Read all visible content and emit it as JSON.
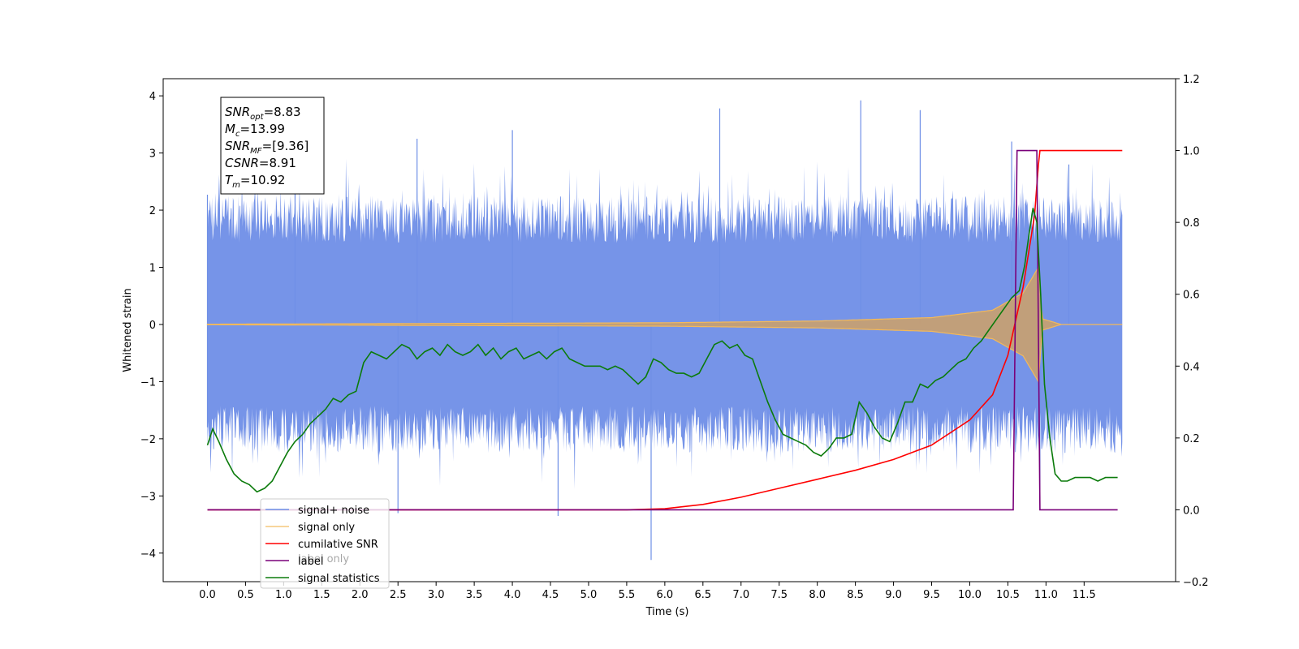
{
  "chart_data": {
    "type": "line",
    "xlabel": "Time (s)",
    "ylabel_left": "Whitened strain",
    "ylabel_right": "",
    "xlim": [
      -0.58,
      12.7
    ],
    "ylim_left": [
      -4.5,
      4.3
    ],
    "ylim_right": [
      -0.2,
      1.2
    ],
    "x_ticks": [
      0.0,
      0.5,
      1.0,
      1.5,
      2.0,
      2.5,
      3.0,
      3.5,
      4.0,
      4.5,
      5.0,
      5.5,
      6.0,
      6.5,
      7.0,
      7.5,
      8.0,
      8.5,
      9.0,
      9.5,
      10.0,
      10.5,
      11.0,
      11.5
    ],
    "x_tick_labels": [
      "0.0",
      "0.5",
      "1.0",
      "1.5",
      "2.0",
      "2.5",
      "3.0",
      "3.5",
      "4.0",
      "4.5",
      "5.0",
      "5.5",
      "6.0",
      "6.5",
      "7.0",
      "7.5",
      "8.0",
      "8.5",
      "9.0",
      "9.5",
      "10.0",
      "10.5",
      "11.0",
      "11.5"
    ],
    "y_left_ticks": [
      -4,
      -3,
      -2,
      -1,
      0,
      1,
      2,
      3,
      4
    ],
    "y_left_tick_labels": [
      "−4",
      "−3",
      "−2",
      "−1",
      "0",
      "1",
      "2",
      "3",
      "4"
    ],
    "y_right_ticks": [
      -0.2,
      0.0,
      0.2,
      0.4,
      0.6,
      0.8,
      1.0,
      1.2
    ],
    "y_right_tick_labels": [
      "−0.2",
      "0.0",
      "0.2",
      "0.4",
      "0.6",
      "0.8",
      "1.0",
      "1.2"
    ],
    "grid": false,
    "legend_position": "bottom-left",
    "info_box": [
      {
        "main": "SNR",
        "sub": "opt",
        "rest": "=8.83"
      },
      {
        "main": "M",
        "sub": "c",
        "rest": "=13.99"
      },
      {
        "main": "SNR",
        "sub": "MF",
        "rest": "=[9.36]"
      },
      {
        "main": "CSNR",
        "sub": "",
        "rest": "=8.91"
      },
      {
        "main": "T",
        "sub": "m",
        "rest": "=10.92"
      }
    ],
    "series": [
      {
        "name": "signal+ noise",
        "axis": "left",
        "color": "#6f8fe6",
        "style": "noise-band",
        "x_range": [
          0.0,
          12.0
        ],
        "typical_amplitude": 1.5,
        "peak_values": [
          {
            "x": 0.0,
            "y": 2.27
          },
          {
            "x": 0.0,
            "y": -1.8
          },
          {
            "x": 1.15,
            "y": 2.45
          },
          {
            "x": 2.5,
            "y": -3.3
          },
          {
            "x": 2.75,
            "y": 3.25
          },
          {
            "x": 4.0,
            "y": 3.4
          },
          {
            "x": 4.6,
            "y": -3.35
          },
          {
            "x": 5.82,
            "y": -4.12
          },
          {
            "x": 6.72,
            "y": 3.78
          },
          {
            "x": 8.57,
            "y": 3.92
          },
          {
            "x": 9.35,
            "y": 3.75
          },
          {
            "x": 10.55,
            "y": 3.2
          },
          {
            "x": 10.92,
            "y": -3.25
          },
          {
            "x": 11.3,
            "y": 2.8
          }
        ]
      },
      {
        "name": "signal only",
        "axis": "left",
        "color": "#f3b95a",
        "style": "chirp",
        "x_range": [
          0.0,
          12.0
        ],
        "merger_time": 10.92,
        "envelope_points": [
          [
            0.0,
            0.005
          ],
          [
            6.0,
            0.03
          ],
          [
            8.0,
            0.06
          ],
          [
            9.5,
            0.12
          ],
          [
            10.3,
            0.25
          ],
          [
            10.7,
            0.55
          ],
          [
            10.9,
            1.0
          ],
          [
            10.95,
            0.1
          ],
          [
            11.2,
            0.0
          ],
          [
            12.0,
            0.0
          ]
        ]
      },
      {
        "name": "cumilative SNR",
        "axis": "right",
        "color": "#ff0000",
        "x": [
          0.0,
          5.5,
          6.0,
          6.5,
          7.0,
          7.5,
          8.0,
          8.5,
          9.0,
          9.5,
          10.0,
          10.3,
          10.5,
          10.7,
          10.85,
          10.9,
          10.92,
          12.0
        ],
        "y": [
          0.0,
          0.0,
          0.003,
          0.015,
          0.035,
          0.06,
          0.085,
          0.11,
          0.14,
          0.18,
          0.25,
          0.32,
          0.43,
          0.62,
          0.82,
          0.96,
          1.0,
          1.0
        ]
      },
      {
        "name": "label",
        "axis": "right",
        "color": "#7a007a",
        "x": [
          0.0,
          10.57,
          10.62,
          10.88,
          10.92,
          11.94
        ],
        "y": [
          0.0,
          0.0,
          1.0,
          1.0,
          0.0,
          0.0
        ]
      },
      {
        "name": "label only",
        "axis": "right",
        "color": "#7a007a",
        "style": "hidden"
      },
      {
        "name": "signal statistics",
        "axis": "right",
        "color": "#0b7b0b",
        "x": [
          0.0,
          0.07,
          0.15,
          0.25,
          0.35,
          0.45,
          0.55,
          0.65,
          0.75,
          0.85,
          0.95,
          1.05,
          1.15,
          1.25,
          1.35,
          1.45,
          1.55,
          1.65,
          1.75,
          1.85,
          1.95,
          2.05,
          2.15,
          2.25,
          2.35,
          2.45,
          2.55,
          2.65,
          2.75,
          2.85,
          2.95,
          3.05,
          3.15,
          3.25,
          3.35,
          3.45,
          3.55,
          3.65,
          3.75,
          3.85,
          3.95,
          4.05,
          4.15,
          4.25,
          4.35,
          4.45,
          4.55,
          4.65,
          4.75,
          4.85,
          4.95,
          5.05,
          5.15,
          5.25,
          5.35,
          5.45,
          5.55,
          5.65,
          5.75,
          5.85,
          5.95,
          6.05,
          6.15,
          6.25,
          6.35,
          6.45,
          6.55,
          6.65,
          6.75,
          6.85,
          6.95,
          7.05,
          7.15,
          7.25,
          7.35,
          7.45,
          7.55,
          7.65,
          7.75,
          7.85,
          7.95,
          8.05,
          8.15,
          8.25,
          8.35,
          8.45,
          8.55,
          8.65,
          8.75,
          8.85,
          8.95,
          9.05,
          9.15,
          9.25,
          9.35,
          9.45,
          9.55,
          9.65,
          9.75,
          9.85,
          9.95,
          10.05,
          10.15,
          10.25,
          10.35,
          10.45,
          10.55,
          10.65,
          10.72,
          10.78,
          10.83,
          10.88,
          10.93,
          10.98,
          11.05,
          11.12,
          11.2,
          11.28,
          11.38,
          11.48,
          11.58,
          11.68,
          11.78,
          11.88,
          11.94
        ],
        "y": [
          0.18,
          0.225,
          0.19,
          0.14,
          0.1,
          0.08,
          0.07,
          0.05,
          0.06,
          0.08,
          0.12,
          0.16,
          0.19,
          0.21,
          0.24,
          0.26,
          0.28,
          0.31,
          0.3,
          0.32,
          0.33,
          0.41,
          0.44,
          0.43,
          0.42,
          0.44,
          0.46,
          0.45,
          0.42,
          0.44,
          0.45,
          0.43,
          0.46,
          0.44,
          0.43,
          0.44,
          0.46,
          0.43,
          0.45,
          0.42,
          0.44,
          0.45,
          0.42,
          0.43,
          0.44,
          0.42,
          0.44,
          0.45,
          0.42,
          0.41,
          0.4,
          0.4,
          0.4,
          0.39,
          0.4,
          0.39,
          0.37,
          0.35,
          0.37,
          0.42,
          0.41,
          0.39,
          0.38,
          0.38,
          0.37,
          0.38,
          0.42,
          0.46,
          0.47,
          0.45,
          0.46,
          0.43,
          0.42,
          0.36,
          0.3,
          0.25,
          0.21,
          0.2,
          0.19,
          0.18,
          0.16,
          0.15,
          0.17,
          0.2,
          0.2,
          0.21,
          0.3,
          0.27,
          0.23,
          0.2,
          0.19,
          0.24,
          0.3,
          0.3,
          0.35,
          0.34,
          0.36,
          0.37,
          0.39,
          0.41,
          0.42,
          0.45,
          0.47,
          0.5,
          0.53,
          0.56,
          0.59,
          0.61,
          0.68,
          0.77,
          0.84,
          0.8,
          0.6,
          0.35,
          0.2,
          0.1,
          0.08,
          0.08,
          0.09,
          0.09,
          0.09,
          0.08,
          0.09,
          0.09,
          0.09
        ]
      }
    ]
  }
}
